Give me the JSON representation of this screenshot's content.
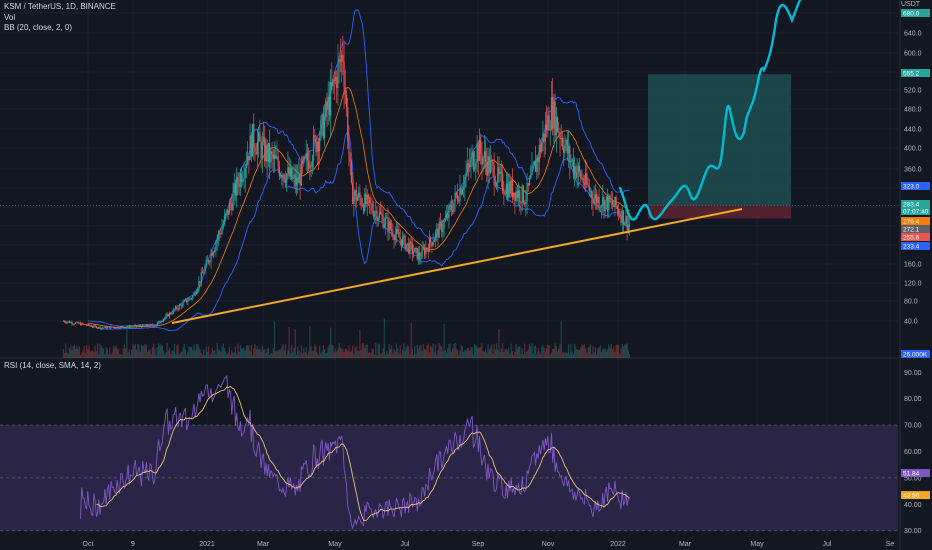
{
  "header": {
    "symbol": "KSM / TetherUS, 1D, BINANCE",
    "vol": "Vol",
    "bb": "BB (20, close, 2, 0)",
    "rsi": "RSI (14, close, SMA, 14, 2)",
    "currency": "USDT"
  },
  "colors": {
    "bg": "#131722",
    "grid": "#1e2230",
    "up": "#26a69a",
    "down": "#ef5350",
    "bb_band": "#2962ff",
    "bb_basis": "#f57c00",
    "trendline": "#f5a623",
    "projection": "#00bcd4",
    "target_zone": "#1d4d4f",
    "stop_zone": "#5a2430",
    "rsi_line": "#7e57c2",
    "rsi_sma": "#e6c07b",
    "rsi_band_fill": "#2a2446"
  },
  "chart_data": [
    {
      "type": "candlestick",
      "title": "KSM / TetherUS, 1D, BINANCE",
      "yaxis": {
        "ticks": [
          40.0,
          80.0,
          120.0,
          160.0,
          200.0,
          240.0,
          280.0,
          320.0,
          360.0,
          400.0,
          440.0,
          480.0,
          520.0,
          560.0,
          600.0,
          640.0,
          680.0
        ],
        "tick_labels": [
          "40.0",
          "80.0",
          "120.0",
          "160.0",
          "",
          "",
          "",
          "",
          "360.0",
          "400.0",
          "440.0",
          "480.0",
          "520.0",
          "560.0",
          "600.0",
          "640.0",
          "680.0"
        ],
        "scale": "log"
      },
      "xaxis": {
        "tick_labels": [
          "Oct",
          "9",
          "2021",
          "Mar",
          "May",
          "Jul",
          "Sep",
          "Nov",
          "2022",
          "Mar",
          "May",
          "Jul",
          "Se"
        ]
      },
      "approx_close_path": [
        [
          "2020-10-01",
          40
        ],
        [
          "2020-11-01",
          28
        ],
        [
          "2020-12-15",
          32
        ],
        [
          "2021-01-15",
          90
        ],
        [
          "2021-02-10",
          250
        ],
        [
          "2021-03-05",
          420
        ],
        [
          "2021-03-20",
          380
        ],
        [
          "2021-04-10",
          330
        ],
        [
          "2021-05-01",
          440
        ],
        [
          "2021-05-18",
          600
        ],
        [
          "2021-05-25",
          310
        ],
        [
          "2021-06-15",
          270
        ],
        [
          "2021-07-01",
          220
        ],
        [
          "2021-07-20",
          175
        ],
        [
          "2021-08-10",
          250
        ],
        [
          "2021-09-05",
          400
        ],
        [
          "2021-09-25",
          330
        ],
        [
          "2021-10-15",
          300
        ],
        [
          "2021-11-05",
          480
        ],
        [
          "2021-11-20",
          380
        ],
        [
          "2021-12-10",
          300
        ],
        [
          "2021-12-28",
          280
        ],
        [
          "2022-01-08",
          240
        ]
      ],
      "price_tags": [
        {
          "label": "680.0",
          "color": "#26a69a",
          "value": 680.0
        },
        {
          "label": "555.2",
          "color": "#26a69a",
          "value": 555.2
        },
        {
          "label": "323.0",
          "color": "#2962ff",
          "value": 323.0
        },
        {
          "label": "283.4",
          "color": "#26a69a",
          "value": 283.4
        },
        {
          "label": "07:07:40",
          "color": "#26a69a",
          "value": 277.5
        },
        {
          "label": "276.4",
          "color": "#f57c00",
          "value": 263.0
        },
        {
          "label": "272.1",
          "color": "#5d606b",
          "value": 253.0
        },
        {
          "label": "255.6",
          "color": "#ef5350",
          "value": 244.0
        },
        {
          "label": "233.4",
          "color": "#2962ff",
          "value": 233.4
        },
        {
          "label": "26.000K",
          "color": "#2962ff",
          "value": 26
        }
      ],
      "annotations": {
        "trendline": "ascending support",
        "projection": "upward path toward 680+",
        "target_box": "green long-position box",
        "stop_box": "red stop zone"
      }
    },
    {
      "type": "line",
      "title": "RSI (14, close, SMA, 14, 2)",
      "yaxis": {
        "ticks": [
          30.0,
          40.0,
          50.0,
          60.0,
          70.0,
          80.0,
          90.0
        ],
        "ylim": [
          28,
          92
        ]
      },
      "band": [
        30,
        70
      ],
      "mid": 50,
      "values_tags": [
        {
          "label": "51.84",
          "color": "#7e57c2",
          "value": 51.84
        },
        {
          "label": "43.50",
          "color": "#f5a623",
          "value": 43.5
        }
      ]
    }
  ]
}
